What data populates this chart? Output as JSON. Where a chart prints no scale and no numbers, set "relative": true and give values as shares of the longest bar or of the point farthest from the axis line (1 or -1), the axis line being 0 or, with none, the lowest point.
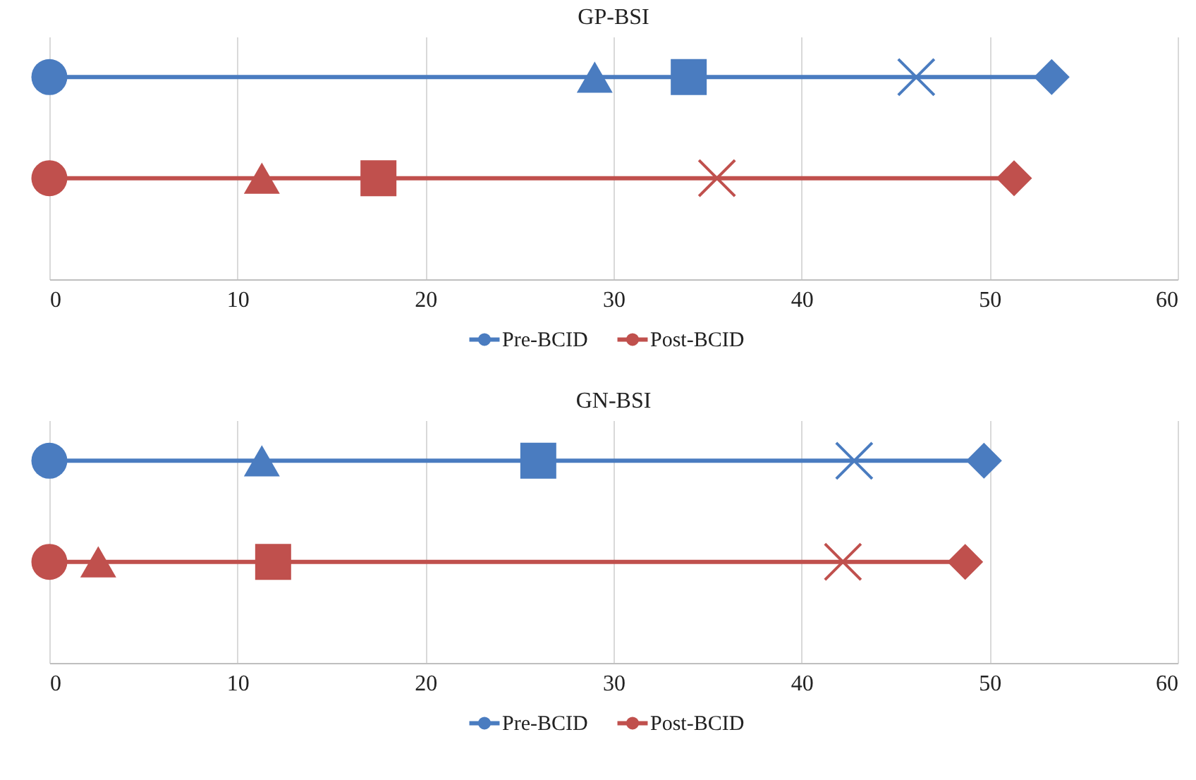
{
  "chart_data": [
    {
      "type": "line",
      "title": "GP-BSI",
      "relative": true,
      "xlim": [
        0,
        60
      ],
      "xticks": [
        0,
        10,
        20,
        30,
        40,
        50,
        60
      ],
      "grid": "x",
      "legend": "bottom",
      "series": [
        {
          "name": "Pre-BCID",
          "color": "#4a7cc0",
          "x": [
            0,
            29.0,
            34.0,
            46.1,
            53.3
          ],
          "values": [
            1,
            1,
            1,
            1,
            1
          ]
        },
        {
          "name": "Post-BCID",
          "color": "#c0504d",
          "x": [
            0,
            11.3,
            17.5,
            35.5,
            51.3
          ],
          "values": [
            0.5,
            0.5,
            0.5,
            0.5,
            0.5
          ]
        },
        {
          "type": "scatter",
          "marker": "circle",
          "x": [
            0,
            0
          ],
          "values": [
            1,
            0.5
          ],
          "colors": [
            "#4a7cc0",
            "#c0504d"
          ]
        },
        {
          "type": "scatter",
          "marker": "triangle",
          "x": [
            29.0,
            11.3
          ],
          "values": [
            1,
            0.5
          ],
          "colors": [
            "#4a7cc0",
            "#c0504d"
          ]
        },
        {
          "type": "scatter",
          "marker": "square",
          "x": [
            34.0,
            17.5
          ],
          "values": [
            1,
            0.5
          ],
          "colors": [
            "#4a7cc0",
            "#c0504d"
          ]
        },
        {
          "type": "scatter",
          "marker": "cross",
          "x": [
            46.1,
            35.5
          ],
          "values": [
            1,
            0.5
          ],
          "colors": [
            "#4a7cc0",
            "#c0504d"
          ]
        },
        {
          "type": "scatter",
          "marker": "diamond",
          "x": [
            53.3,
            51.3
          ],
          "values": [
            1,
            0.5
          ],
          "colors": [
            "#4a7cc0",
            "#c0504d"
          ]
        }
      ]
    },
    {
      "type": "line",
      "title": "GN-BSI",
      "relative": true,
      "xlim": [
        0,
        60
      ],
      "xticks": [
        0,
        10,
        20,
        30,
        40,
        50,
        60
      ],
      "grid": "x",
      "legend": "bottom",
      "series": [
        {
          "name": "Pre-BCID",
          "color": "#4a7cc0",
          "x": [
            0,
            11.3,
            26.0,
            42.8,
            49.7
          ],
          "values": [
            1,
            1,
            1,
            1,
            1
          ]
        },
        {
          "name": "Post-BCID",
          "color": "#c0504d",
          "x": [
            0,
            2.6,
            11.9,
            42.2,
            48.7
          ],
          "values": [
            0.5,
            0.5,
            0.5,
            0.5,
            0.5
          ]
        },
        {
          "type": "scatter",
          "marker": "circle",
          "x": [
            0,
            0
          ],
          "values": [
            1,
            0.5
          ],
          "colors": [
            "#4a7cc0",
            "#c0504d"
          ]
        },
        {
          "type": "scatter",
          "marker": "triangle",
          "x": [
            11.3,
            2.6
          ],
          "values": [
            1,
            0.5
          ],
          "colors": [
            "#4a7cc0",
            "#c0504d"
          ]
        },
        {
          "type": "scatter",
          "marker": "square",
          "x": [
            26.0,
            11.9
          ],
          "values": [
            1,
            0.5
          ],
          "colors": [
            "#4a7cc0",
            "#c0504d"
          ]
        },
        {
          "type": "scatter",
          "marker": "cross",
          "x": [
            42.8,
            42.2
          ],
          "values": [
            1,
            0.5
          ],
          "colors": [
            "#4a7cc0",
            "#c0504d"
          ]
        },
        {
          "type": "scatter",
          "marker": "diamond",
          "x": [
            49.7,
            48.7
          ],
          "values": [
            1,
            0.5
          ],
          "colors": [
            "#4a7cc0",
            "#c0504d"
          ]
        }
      ]
    }
  ]
}
